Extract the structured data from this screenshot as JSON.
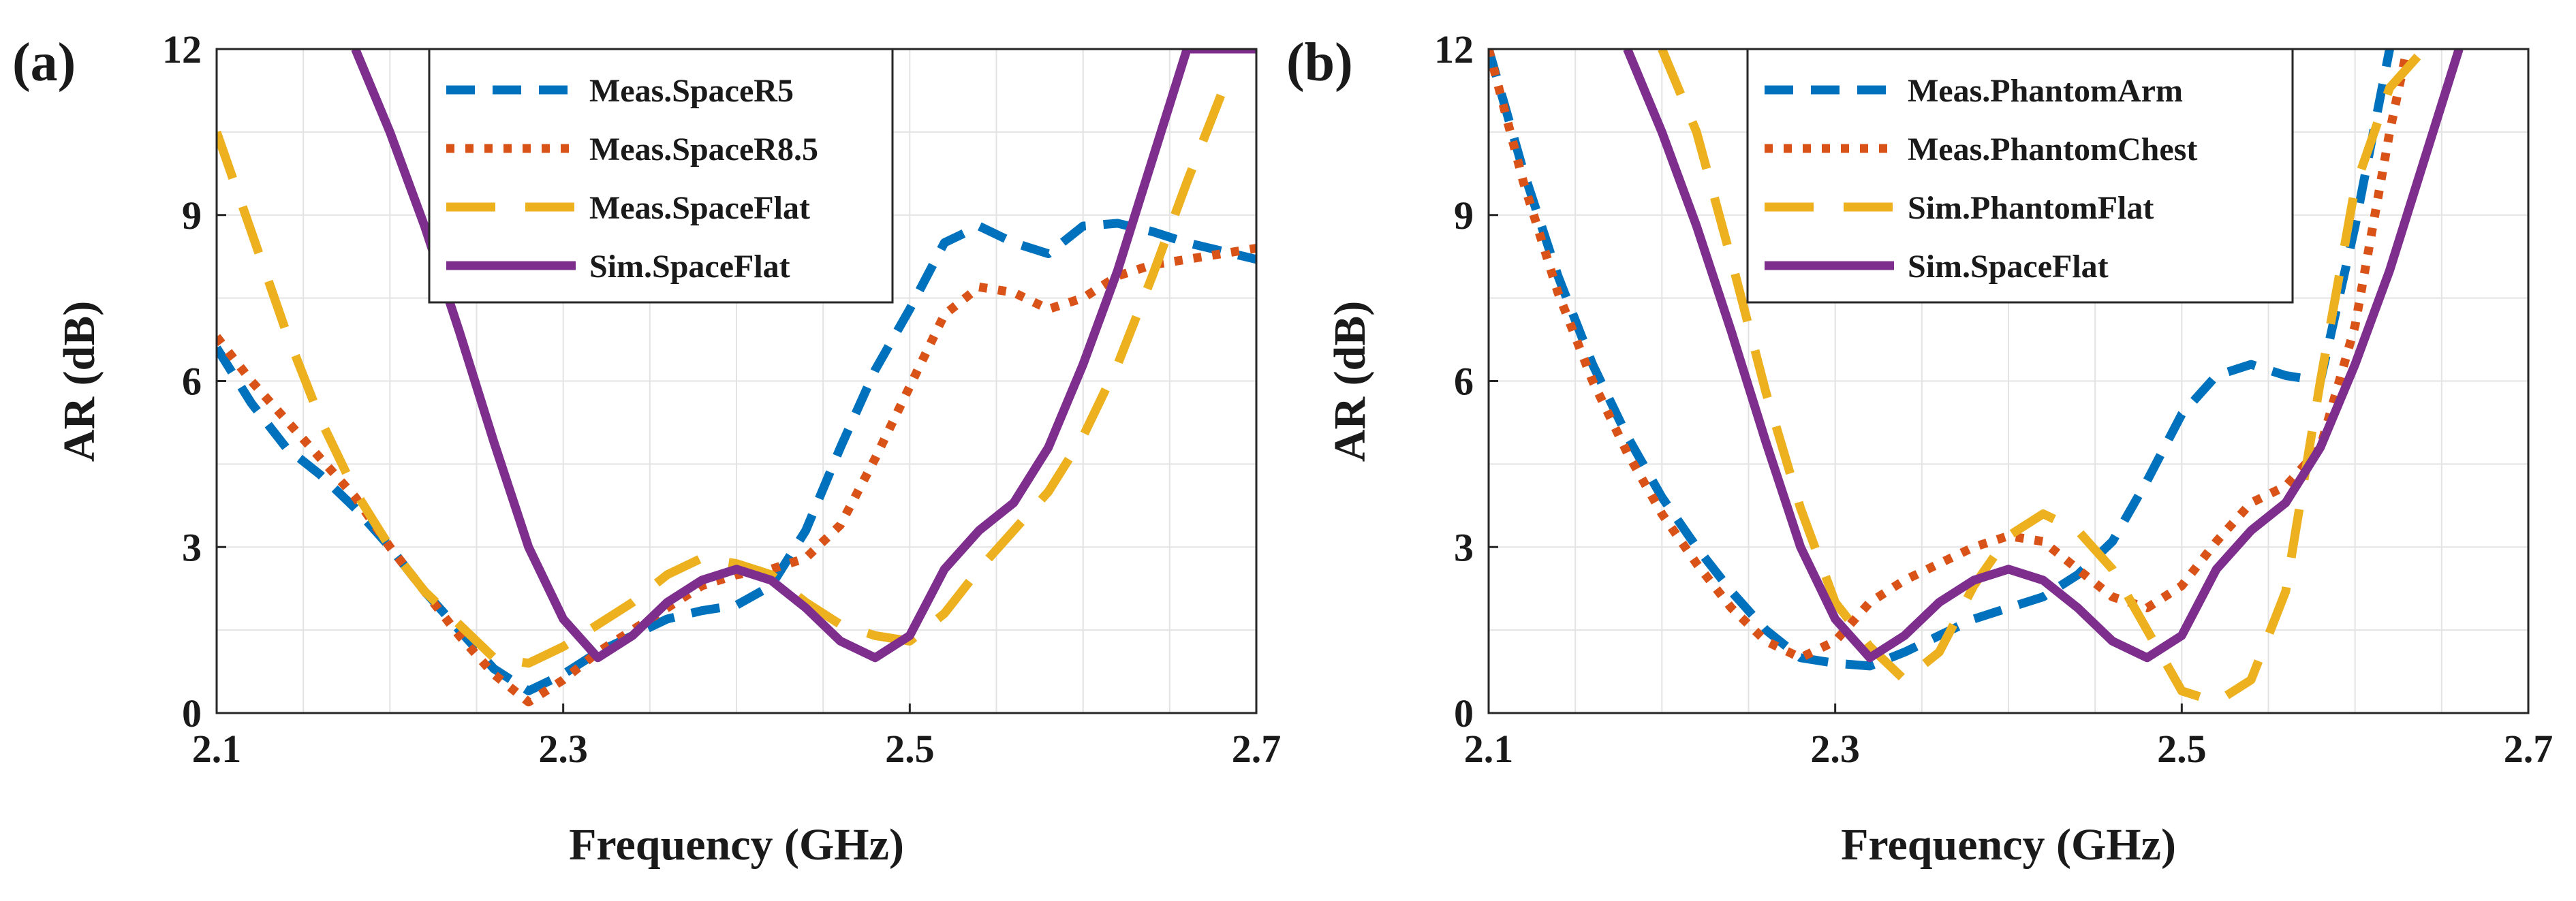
{
  "chart_data": [
    {
      "type": "line",
      "panel_label": "(a)",
      "xlabel": "Frequency (GHz)",
      "ylabel": "AR (dB)",
      "xlim": [
        2.1,
        2.7
      ],
      "ylim": [
        0,
        12
      ],
      "xticks": [
        2.1,
        2.3,
        2.5,
        2.7
      ],
      "yticks": [
        0,
        3,
        6,
        9,
        12
      ],
      "xtick_labels": [
        "2.1",
        "2.3",
        "2.5",
        "2.7"
      ],
      "ytick_labels": [
        "0",
        "3",
        "6",
        "9",
        "12"
      ],
      "grid": true,
      "legend_position": "top-center",
      "series": [
        {
          "name": "Meas.SpaceR5",
          "color": "#0072BD",
          "style": "dashed",
          "x": [
            2.1,
            2.12,
            2.14,
            2.16,
            2.18,
            2.2,
            2.22,
            2.24,
            2.26,
            2.28,
            2.3,
            2.32,
            2.34,
            2.36,
            2.38,
            2.4,
            2.42,
            2.44,
            2.46,
            2.48,
            2.5,
            2.52,
            2.54,
            2.56,
            2.58,
            2.6,
            2.62,
            2.64,
            2.66,
            2.68,
            2.7
          ],
          "y": [
            6.6,
            5.6,
            4.8,
            4.3,
            3.7,
            3.0,
            2.2,
            1.5,
            0.8,
            0.4,
            0.7,
            1.1,
            1.4,
            1.7,
            1.85,
            1.95,
            2.3,
            3.3,
            4.8,
            6.2,
            7.3,
            8.5,
            8.8,
            8.5,
            8.3,
            8.8,
            8.85,
            8.7,
            8.5,
            8.35,
            8.2
          ]
        },
        {
          "name": "Meas.SpaceR8.5",
          "color": "#D95319",
          "style": "dotted",
          "x": [
            2.1,
            2.12,
            2.14,
            2.16,
            2.18,
            2.2,
            2.22,
            2.24,
            2.26,
            2.28,
            2.3,
            2.32,
            2.34,
            2.36,
            2.38,
            2.4,
            2.42,
            2.44,
            2.46,
            2.48,
            2.5,
            2.52,
            2.54,
            2.56,
            2.58,
            2.6,
            2.62,
            2.64,
            2.66,
            2.68,
            2.7
          ],
          "y": [
            6.8,
            6.0,
            5.3,
            4.6,
            3.9,
            3.0,
            2.2,
            1.4,
            0.7,
            0.2,
            0.6,
            1.1,
            1.5,
            1.9,
            2.3,
            2.5,
            2.6,
            2.8,
            3.4,
            4.6,
            5.9,
            7.2,
            7.7,
            7.6,
            7.3,
            7.5,
            7.9,
            8.1,
            8.2,
            8.3,
            8.4
          ]
        },
        {
          "name": "Meas.SpaceFlat",
          "color": "#EDB120",
          "style": "longdash",
          "x": [
            2.1,
            2.12,
            2.14,
            2.16,
            2.18,
            2.2,
            2.22,
            2.24,
            2.26,
            2.28,
            2.3,
            2.32,
            2.34,
            2.36,
            2.38,
            2.4,
            2.42,
            2.44,
            2.46,
            2.48,
            2.5,
            2.52,
            2.54,
            2.56,
            2.58,
            2.6,
            2.62,
            2.64,
            2.66,
            2.68
          ],
          "y": [
            10.5,
            8.7,
            6.9,
            5.3,
            4.0,
            3.0,
            2.2,
            1.6,
            1.0,
            0.9,
            1.2,
            1.6,
            2.0,
            2.5,
            2.8,
            2.7,
            2.5,
            2.0,
            1.6,
            1.4,
            1.3,
            1.8,
            2.6,
            3.3,
            4.0,
            5.0,
            6.3,
            7.9,
            9.6,
            11.2
          ]
        },
        {
          "name": "Sim.SpaceFlat",
          "color": "#7E2F8E",
          "style": "solid",
          "x": [
            2.18,
            2.2,
            2.22,
            2.24,
            2.26,
            2.28,
            2.3,
            2.32,
            2.34,
            2.36,
            2.38,
            2.4,
            2.42,
            2.44,
            2.46,
            2.48,
            2.5,
            2.52,
            2.54,
            2.56,
            2.58,
            2.6,
            2.62,
            2.64,
            2.66,
            2.68,
            2.7
          ],
          "y": [
            12.0,
            10.5,
            8.8,
            6.9,
            4.9,
            3.0,
            1.7,
            1.0,
            1.4,
            2.0,
            2.4,
            2.6,
            2.4,
            1.9,
            1.3,
            1.0,
            1.4,
            2.6,
            3.3,
            3.8,
            4.8,
            6.3,
            8.0,
            10.0,
            12.0,
            12.0,
            12.0
          ]
        }
      ]
    },
    {
      "type": "line",
      "panel_label": "(b)",
      "xlabel": "Frequency (GHz)",
      "ylabel": "AR (dB)",
      "xlim": [
        2.1,
        2.7
      ],
      "ylim": [
        0,
        12
      ],
      "xticks": [
        2.1,
        2.3,
        2.5,
        2.7
      ],
      "yticks": [
        0,
        3,
        6,
        9,
        12
      ],
      "xtick_labels": [
        "2.1",
        "2.3",
        "2.5",
        "2.7"
      ],
      "ytick_labels": [
        "0",
        "3",
        "6",
        "9",
        "12"
      ],
      "grid": true,
      "legend_position": "top-center",
      "series": [
        {
          "name": "Meas.PhantomArm",
          "color": "#0072BD",
          "style": "dashed",
          "x": [
            2.1,
            2.12,
            2.14,
            2.16,
            2.18,
            2.2,
            2.22,
            2.24,
            2.26,
            2.28,
            2.3,
            2.32,
            2.34,
            2.36,
            2.38,
            2.4,
            2.42,
            2.44,
            2.46,
            2.48,
            2.5,
            2.52,
            2.54,
            2.56,
            2.58,
            2.6,
            2.62
          ],
          "y": [
            12.0,
            9.8,
            7.9,
            6.3,
            5.0,
            3.9,
            3.0,
            2.2,
            1.5,
            1.0,
            0.9,
            0.85,
            1.1,
            1.4,
            1.7,
            1.9,
            2.1,
            2.5,
            3.1,
            4.2,
            5.4,
            6.1,
            6.3,
            6.1,
            6.0,
            8.8,
            12.0
          ]
        },
        {
          "name": "Meas.PhantomChest",
          "color": "#D95319",
          "style": "dotted",
          "x": [
            2.1,
            2.12,
            2.14,
            2.16,
            2.18,
            2.2,
            2.22,
            2.24,
            2.26,
            2.28,
            2.3,
            2.32,
            2.34,
            2.36,
            2.38,
            2.4,
            2.42,
            2.44,
            2.46,
            2.48,
            2.5,
            2.52,
            2.54,
            2.56,
            2.58,
            2.6,
            2.62,
            2.63
          ],
          "y": [
            12.0,
            9.6,
            7.6,
            6.0,
            4.7,
            3.6,
            2.7,
            1.9,
            1.3,
            1.0,
            1.3,
            2.0,
            2.4,
            2.7,
            3.0,
            3.2,
            3.1,
            2.6,
            2.1,
            1.9,
            2.3,
            3.1,
            3.8,
            4.1,
            4.8,
            7.0,
            10.5,
            12.0
          ]
        },
        {
          "name": "Sim.PhantomFlat",
          "color": "#EDB120",
          "style": "longdash",
          "x": [
            2.2,
            2.22,
            2.24,
            2.26,
            2.28,
            2.3,
            2.32,
            2.34,
            2.36,
            2.38,
            2.4,
            2.42,
            2.44,
            2.46,
            2.48,
            2.5,
            2.52,
            2.54,
            2.56,
            2.58,
            2.6,
            2.62,
            2.64
          ],
          "y": [
            12.0,
            10.5,
            8.2,
            5.8,
            3.7,
            2.0,
            1.2,
            0.6,
            1.1,
            2.3,
            3.2,
            3.6,
            3.3,
            2.6,
            1.5,
            0.4,
            0.2,
            0.6,
            2.2,
            6.0,
            9.5,
            11.3,
            12.0
          ]
        },
        {
          "name": "Sim.SpaceFlat",
          "color": "#7E2F8E",
          "style": "solid",
          "x": [
            2.18,
            2.2,
            2.22,
            2.24,
            2.26,
            2.28,
            2.3,
            2.32,
            2.34,
            2.36,
            2.38,
            2.4,
            2.42,
            2.44,
            2.46,
            2.48,
            2.5,
            2.52,
            2.54,
            2.56,
            2.58,
            2.6,
            2.62,
            2.64,
            2.66
          ],
          "y": [
            12.0,
            10.5,
            8.8,
            6.9,
            4.9,
            3.0,
            1.7,
            1.0,
            1.4,
            2.0,
            2.4,
            2.6,
            2.4,
            1.9,
            1.3,
            1.0,
            1.4,
            2.6,
            3.3,
            3.8,
            4.8,
            6.3,
            8.0,
            10.0,
            12.0
          ]
        }
      ]
    }
  ]
}
